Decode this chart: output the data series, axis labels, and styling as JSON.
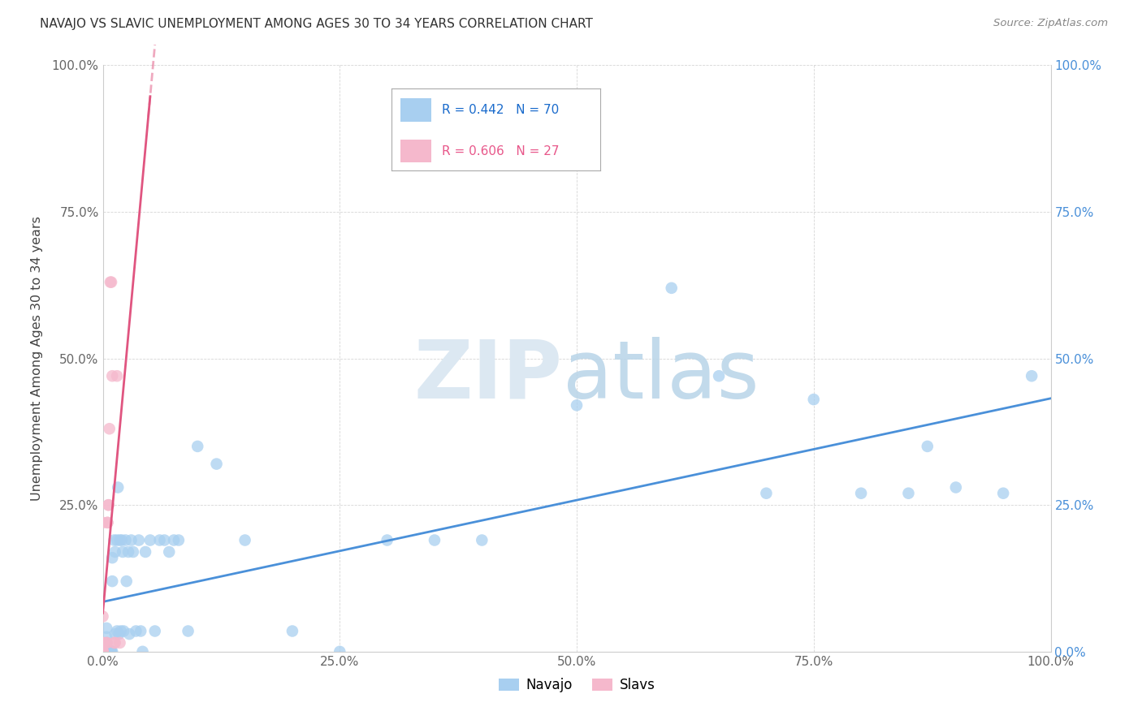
{
  "title": "NAVAJO VS SLAVIC UNEMPLOYMENT AMONG AGES 30 TO 34 YEARS CORRELATION CHART",
  "source": "Source: ZipAtlas.com",
  "ylabel": "Unemployment Among Ages 30 to 34 years",
  "xlim": [
    0,
    1
  ],
  "ylim": [
    0,
    1
  ],
  "xticks": [
    0.0,
    0.25,
    0.5,
    0.75,
    1.0
  ],
  "yticks": [
    0.0,
    0.25,
    0.5,
    0.75,
    1.0
  ],
  "left_yticklabels": [
    "",
    "25.0%",
    "50.0%",
    "75.0%",
    "100.0%"
  ],
  "right_yticklabels": [
    "0.0%",
    "25.0%",
    "50.0%",
    "75.0%",
    "100.0%"
  ],
  "xticklabels": [
    "0.0%",
    "25.0%",
    "50.0%",
    "75.0%",
    "100.0%"
  ],
  "navajo_color": "#a8cff0",
  "slavic_color": "#f5b8cc",
  "navajo_line_color": "#4a90d9",
  "slavic_line_color": "#e05580",
  "navajo_R": 0.442,
  "navajo_N": 70,
  "slavic_R": 0.606,
  "slavic_N": 27,
  "navajo_x": [
    0.004,
    0.004,
    0.004,
    0.004,
    0.005,
    0.005,
    0.006,
    0.006,
    0.006,
    0.006,
    0.007,
    0.007,
    0.007,
    0.008,
    0.008,
    0.009,
    0.009,
    0.01,
    0.01,
    0.01,
    0.012,
    0.013,
    0.013,
    0.015,
    0.015,
    0.016,
    0.017,
    0.018,
    0.019,
    0.02,
    0.021,
    0.022,
    0.024,
    0.025,
    0.027,
    0.028,
    0.03,
    0.032,
    0.035,
    0.038,
    0.04,
    0.042,
    0.045,
    0.05,
    0.055,
    0.06,
    0.065,
    0.07,
    0.075,
    0.08,
    0.09,
    0.1,
    0.12,
    0.15,
    0.2,
    0.25,
    0.3,
    0.35,
    0.4,
    0.5,
    0.6,
    0.65,
    0.7,
    0.75,
    0.8,
    0.85,
    0.87,
    0.9,
    0.95,
    0.98
  ],
  "navajo_y": [
    0.04,
    0.025,
    0.015,
    0.005,
    0.005,
    0.0,
    0.0,
    0.0,
    0.0,
    0.0,
    0.0,
    0.0,
    0.0,
    0.0,
    0.0,
    0.0,
    0.0,
    0.16,
    0.12,
    0.0,
    0.19,
    0.17,
    0.03,
    0.19,
    0.035,
    0.28,
    0.03,
    0.19,
    0.035,
    0.19,
    0.17,
    0.035,
    0.19,
    0.12,
    0.17,
    0.03,
    0.19,
    0.17,
    0.035,
    0.19,
    0.035,
    0.0,
    0.17,
    0.19,
    0.035,
    0.19,
    0.19,
    0.17,
    0.19,
    0.19,
    0.035,
    0.35,
    0.32,
    0.19,
    0.035,
    0.0,
    0.19,
    0.19,
    0.19,
    0.42,
    0.62,
    0.47,
    0.27,
    0.43,
    0.27,
    0.27,
    0.35,
    0.28,
    0.27,
    0.47
  ],
  "slavic_x": [
    0.0,
    0.0,
    0.0,
    0.0,
    0.0,
    0.0,
    0.0,
    0.0,
    0.0,
    0.0,
    0.0,
    0.0,
    0.0,
    0.004,
    0.004,
    0.005,
    0.005,
    0.006,
    0.006,
    0.007,
    0.008,
    0.009,
    0.01,
    0.012,
    0.013,
    0.015,
    0.018
  ],
  "slavic_y": [
    0.0,
    0.0,
    0.0,
    0.0,
    0.0,
    0.0,
    0.0,
    0.0,
    0.015,
    0.015,
    0.015,
    0.06,
    0.22,
    0.015,
    0.015,
    0.22,
    0.22,
    0.25,
    0.25,
    0.38,
    0.63,
    0.63,
    0.47,
    0.015,
    0.015,
    0.47,
    0.015
  ]
}
